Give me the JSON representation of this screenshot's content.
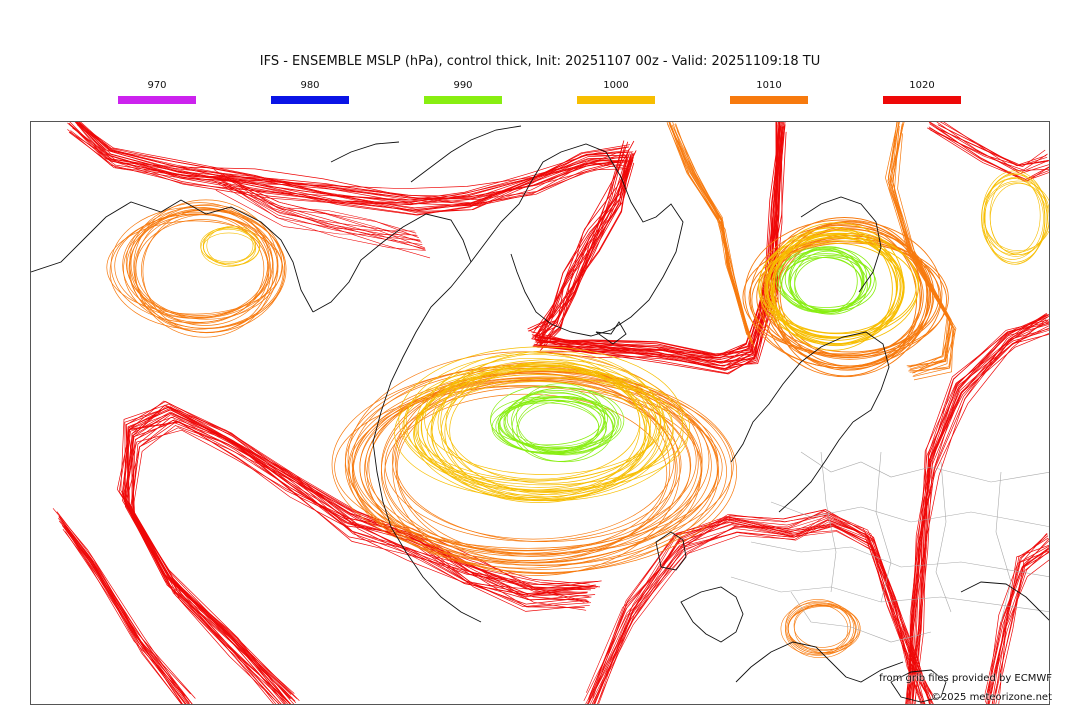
{
  "title": "IFS - ENSEMBLE MSLP (hPa), control thick, Init: 20251107 00z - Valid: 20251109:18 TU",
  "legend": [
    {
      "label": "970",
      "color": "#cc22ee"
    },
    {
      "label": "980",
      "color": "#0a14e6"
    },
    {
      "label": "990",
      "color": "#88ee11"
    },
    {
      "label": "1000",
      "color": "#f7be00"
    },
    {
      "label": "1010",
      "color": "#f77a0e"
    },
    {
      "label": "1020",
      "color": "#ee0808"
    }
  ],
  "credits": {
    "source": "from grib files provided by ECMWF",
    "copyright": "©2025 meteorizone.net"
  },
  "map": {
    "coastline_color": "#111111",
    "border_color": "#aaaaaa"
  }
}
